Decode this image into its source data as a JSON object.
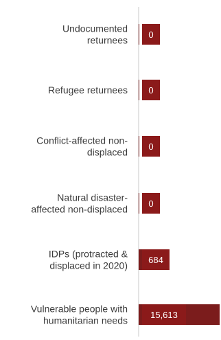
{
  "chart_data": {
    "type": "bar",
    "orientation": "horizontal",
    "categories": [
      [
        "Undocumented",
        "returnees"
      ],
      [
        "Refugee returnees"
      ],
      [
        "Conflict-affected non-",
        "displaced"
      ],
      [
        "Natural disaster-",
        "affected non-displaced"
      ],
      [
        "IDPs (protracted &",
        "displaced in 2020)"
      ],
      [
        "Vulnerable people with",
        "humanitarian needs"
      ]
    ],
    "values": [
      0,
      0,
      0,
      0,
      684,
      15613
    ],
    "value_labels": [
      "0",
      "0",
      "0",
      "0",
      "684",
      "15,613"
    ],
    "title": "",
    "xlabel": "",
    "ylabel": "",
    "xlim": [
      0,
      15613
    ],
    "grid": false,
    "legend": "none"
  },
  "colors": {
    "bar": "#7b1c1c",
    "bar_label_bg": "#8b1a1a",
    "axis": "#c8c8c8",
    "label_text": "#3a3a3a",
    "value_text": "#ffffff"
  }
}
